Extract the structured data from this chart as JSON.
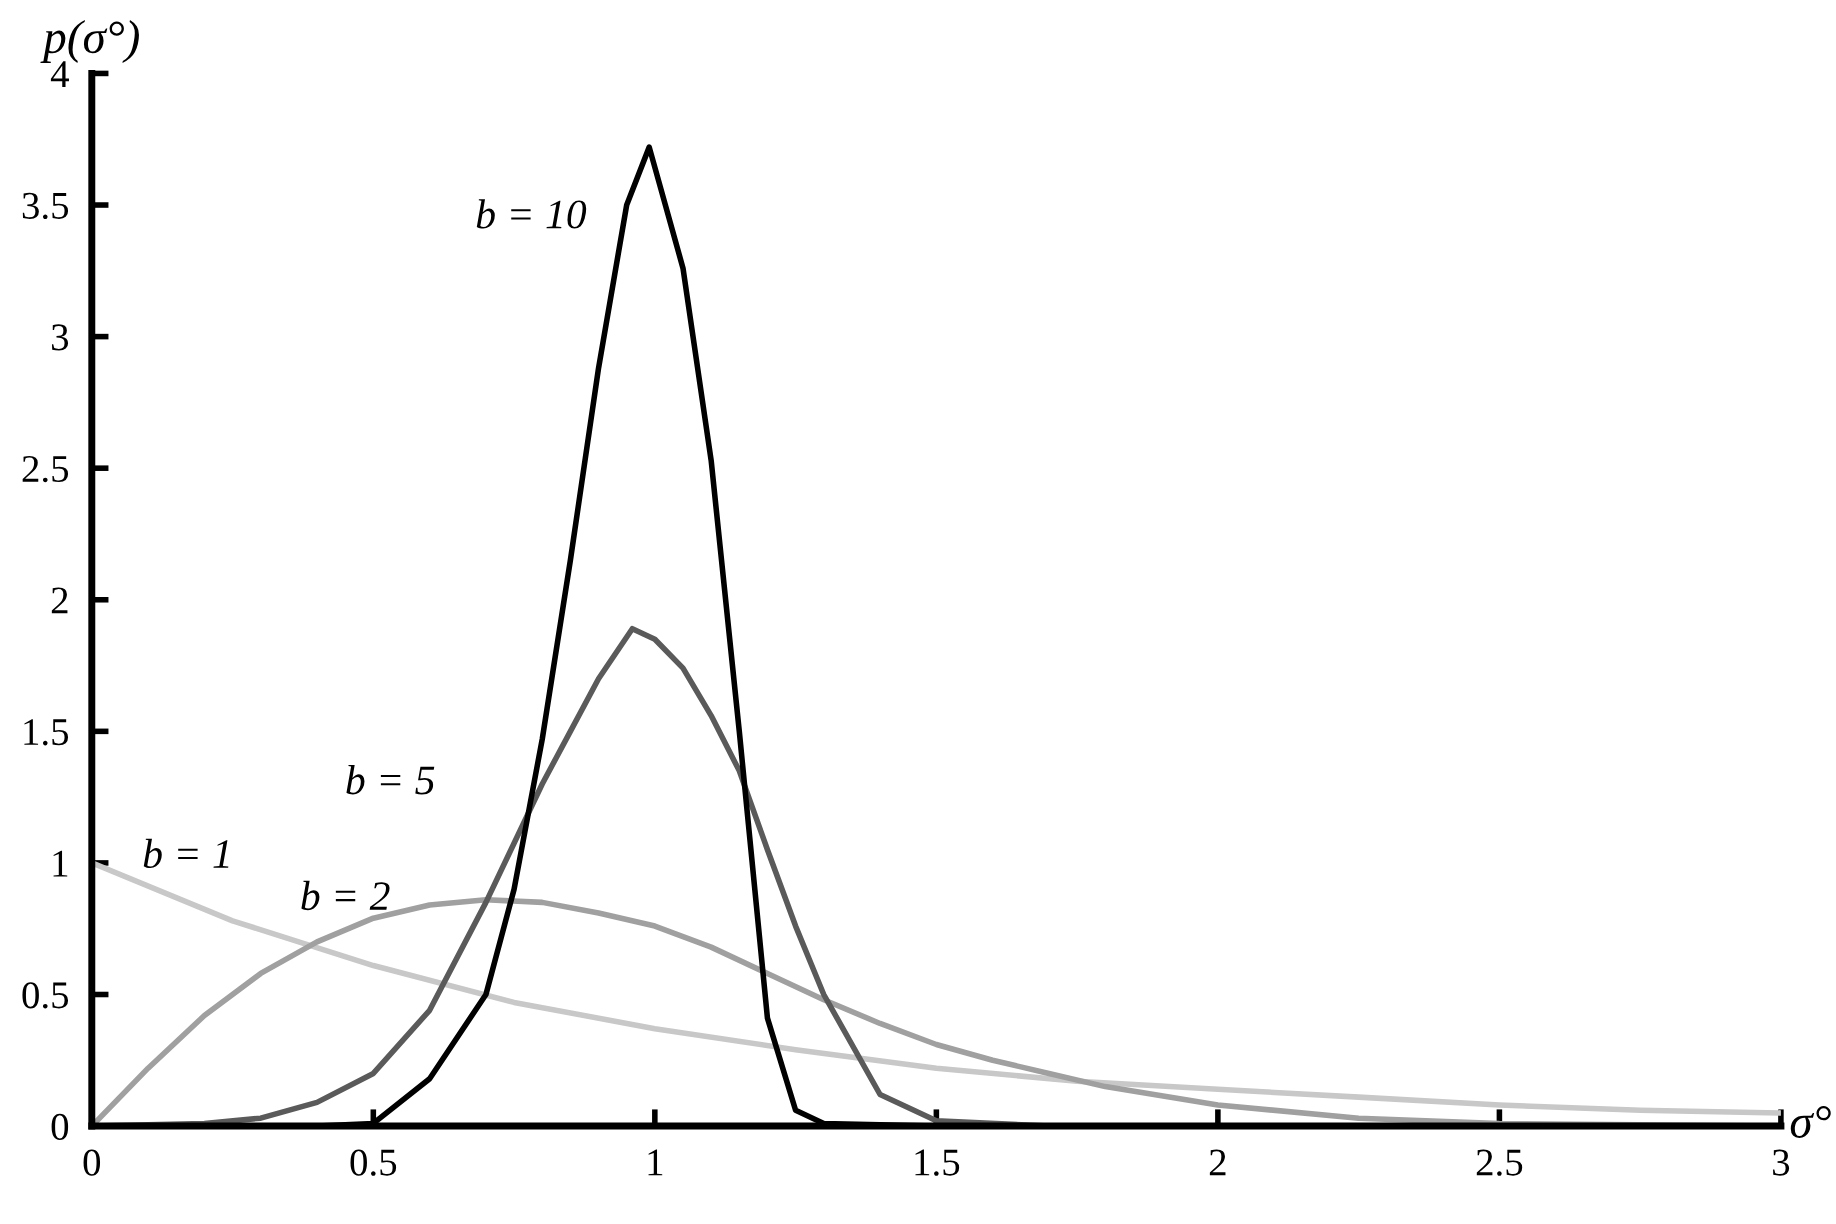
{
  "chart_data": {
    "type": "line",
    "xlabel": "σ°",
    "ylabel": "p(σ°)",
    "xlim": [
      0,
      3
    ],
    "xticks": [
      0,
      0.5,
      1,
      1.5,
      2,
      2.5,
      3
    ],
    "ylim": [
      0,
      4
    ],
    "yticks": [
      0,
      0.5,
      1,
      1.5,
      2,
      2.5,
      3,
      3.5,
      4
    ],
    "grid": false,
    "legend": false,
    "marker": "none",
    "line_style": "solid",
    "series": [
      {
        "name": "b = 1",
        "color": "#c8c8c8",
        "x": [
          0,
          0.25,
          0.5,
          0.75,
          1,
          1.25,
          1.5,
          1.75,
          2,
          2.25,
          2.5,
          2.75,
          3
        ],
        "values": [
          1,
          0.78,
          0.61,
          0.47,
          0.37,
          0.29,
          0.22,
          0.17,
          0.14,
          0.11,
          0.08,
          0.06,
          0.05
        ]
      },
      {
        "name": "b = 2",
        "color": "#a0a0a0",
        "x": [
          0,
          0.1,
          0.2,
          0.3,
          0.4,
          0.5,
          0.6,
          0.7,
          0.8,
          0.9,
          1.0,
          1.1,
          1.2,
          1.3,
          1.4,
          1.5,
          1.6,
          1.7,
          1.8,
          2,
          2.25,
          2.5,
          3
        ],
        "values": [
          0,
          0.22,
          0.42,
          0.58,
          0.7,
          0.79,
          0.84,
          0.86,
          0.85,
          0.81,
          0.76,
          0.68,
          0.58,
          0.48,
          0.39,
          0.31,
          0.25,
          0.2,
          0.15,
          0.08,
          0.03,
          0.01,
          0
        ]
      },
      {
        "name": "b = 5",
        "color": "#5a5a5a",
        "x": [
          0,
          0.2,
          0.3,
          0.4,
          0.5,
          0.6,
          0.7,
          0.8,
          0.85,
          0.9,
          0.96,
          1.0,
          1.05,
          1.1,
          1.15,
          1.2,
          1.25,
          1.3,
          1.4,
          1.5,
          1.7,
          3
        ],
        "values": [
          0,
          0.01,
          0.03,
          0.09,
          0.2,
          0.44,
          0.85,
          1.3,
          1.5,
          1.7,
          1.89,
          1.85,
          1.74,
          1.56,
          1.35,
          1.05,
          0.76,
          0.5,
          0.12,
          0.02,
          0,
          0
        ]
      },
      {
        "name": "b = 10",
        "color": "#000000",
        "x": [
          0,
          0.4,
          0.5,
          0.6,
          0.7,
          0.75,
          0.8,
          0.85,
          0.9,
          0.95,
          0.99,
          1.05,
          1.1,
          1.15,
          1.2,
          1.25,
          1.3,
          1.5,
          3
        ],
        "values": [
          0,
          0,
          0.01,
          0.18,
          0.5,
          0.9,
          1.47,
          2.15,
          2.88,
          3.5,
          3.72,
          3.26,
          2.53,
          1.5,
          0.41,
          0.06,
          0.01,
          0,
          0
        ]
      }
    ]
  }
}
